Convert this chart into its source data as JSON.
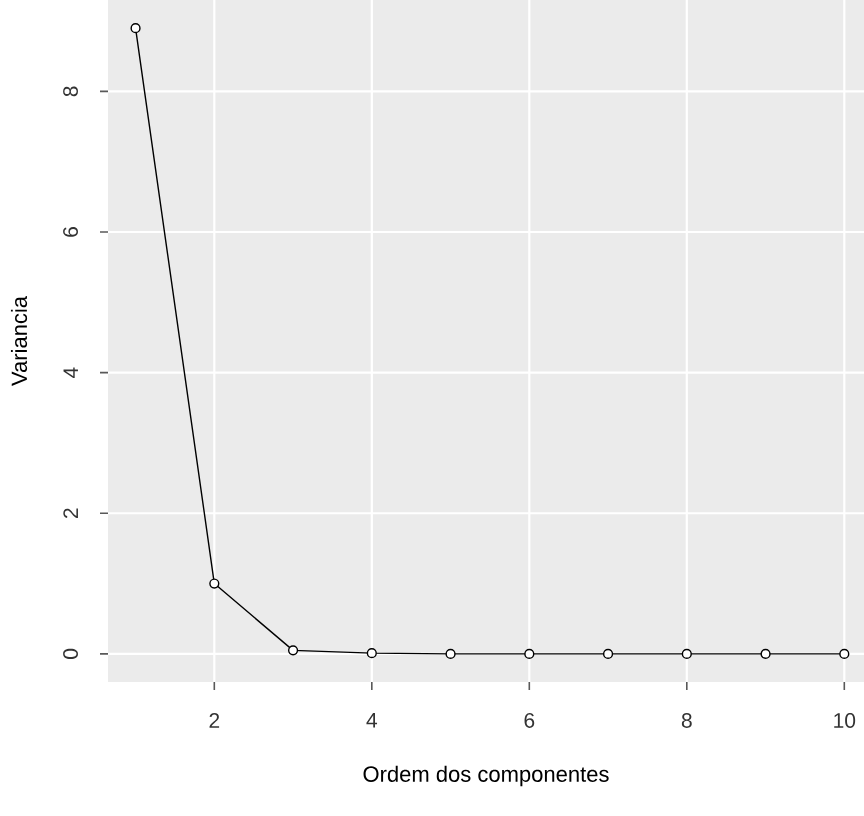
{
  "chart_data": {
    "type": "line",
    "xlabel": "Ordem dos componentes",
    "ylabel": "Variancia",
    "x": [
      1,
      2,
      3,
      4,
      5,
      6,
      7,
      8,
      9,
      10
    ],
    "values": [
      8.9,
      1.0,
      0.05,
      0.01,
      0,
      0,
      0,
      0,
      0,
      0
    ],
    "color": "#000000",
    "marker": "circle",
    "xlim": [
      0.65,
      10.25
    ],
    "ylim": [
      -0.4,
      9.3
    ],
    "xticks": [
      2,
      4,
      6,
      8,
      10
    ],
    "yticks": [
      0,
      2,
      4,
      6,
      8
    ],
    "grid": true
  }
}
